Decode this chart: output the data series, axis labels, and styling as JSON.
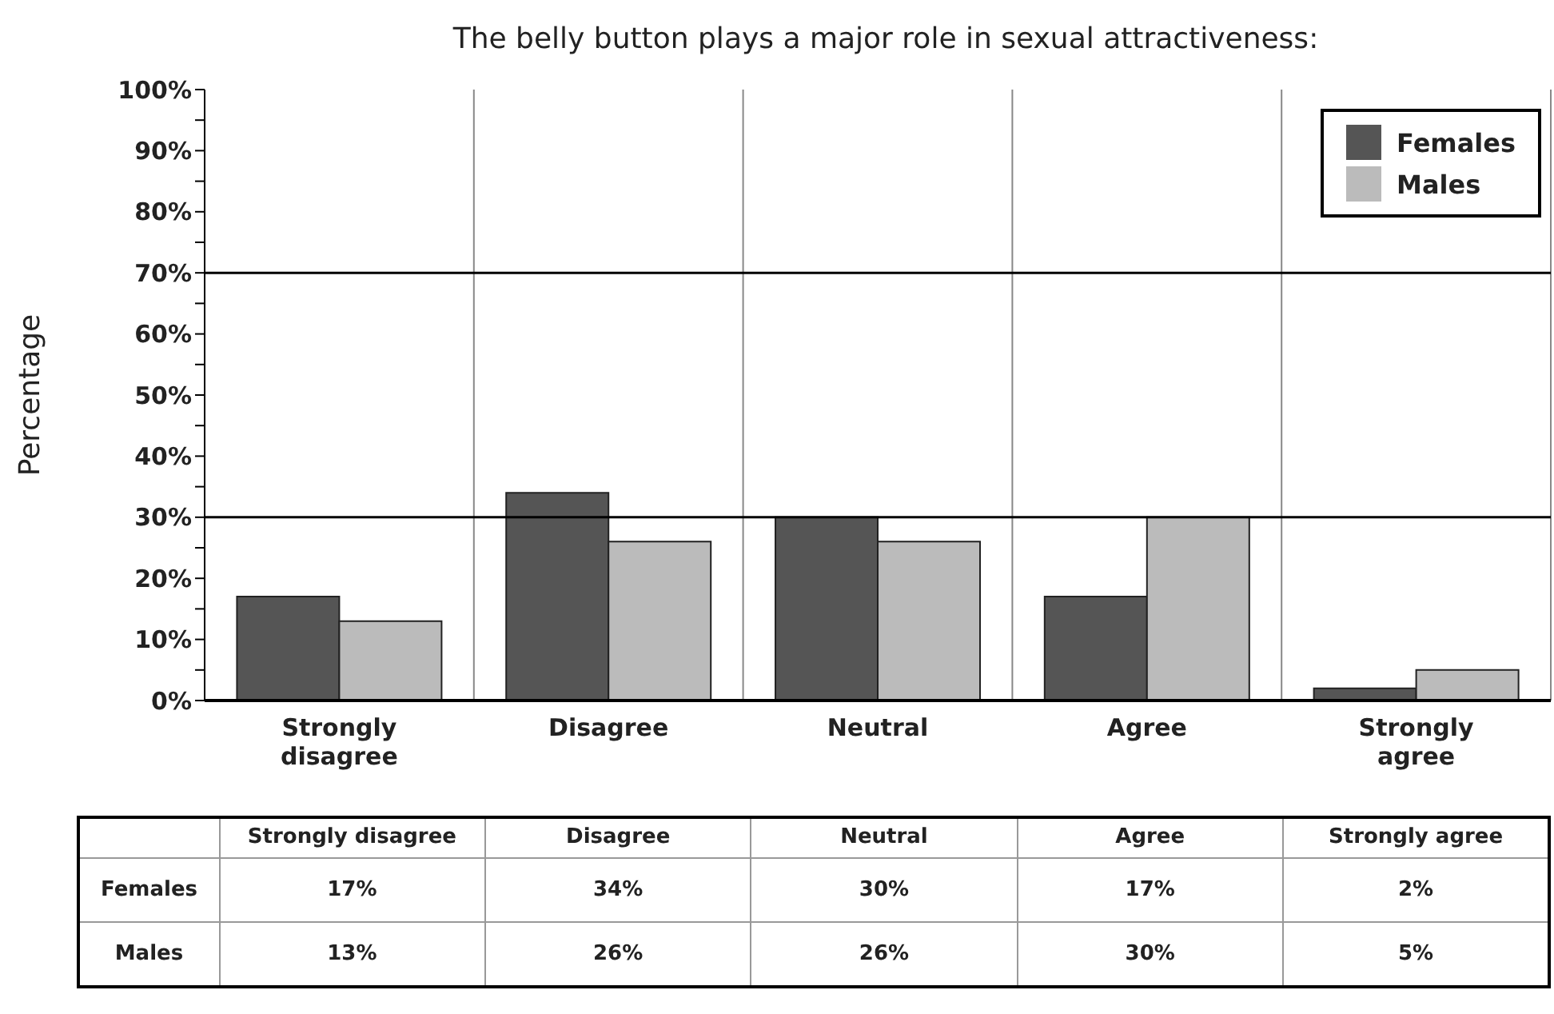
{
  "chart_data": {
    "type": "bar",
    "title": "The belly button plays a major role in sexual attractiveness:",
    "ylabel": "Percentage",
    "categories": [
      "Strongly disagree",
      "Disagree",
      "Neutral",
      "Agree",
      "Strongly agree"
    ],
    "series": [
      {
        "name": "Females",
        "color": "#555555",
        "values": [
          17,
          34,
          30,
          17,
          2
        ],
        "value_labels": [
          "17%",
          "34%",
          "30%",
          "17%",
          "2%"
        ]
      },
      {
        "name": "Males",
        "color": "#bbbbbb",
        "values": [
          13,
          26,
          26,
          30,
          5
        ],
        "value_labels": [
          "13%",
          "26%",
          "26%",
          "30%",
          "5%"
        ]
      }
    ],
    "ylim": [
      0,
      100
    ],
    "yticks": [
      {
        "value": 0,
        "label": "0%"
      },
      {
        "value": 5,
        "label": null
      },
      {
        "value": 10,
        "label": "10%"
      },
      {
        "value": 15,
        "label": null
      },
      {
        "value": 20,
        "label": "20%"
      },
      {
        "value": 25,
        "label": null
      },
      {
        "value": 30,
        "label": "30%"
      },
      {
        "value": 35,
        "label": null
      },
      {
        "value": 40,
        "label": "40%"
      },
      {
        "value": 45,
        "label": null
      },
      {
        "value": 50,
        "label": "50%"
      },
      {
        "value": 55,
        "label": null
      },
      {
        "value": 60,
        "label": "60%"
      },
      {
        "value": 65,
        "label": null
      },
      {
        "value": 70,
        "label": "70%"
      },
      {
        "value": 75,
        "label": null
      },
      {
        "value": 80,
        "label": "80%"
      },
      {
        "value": 85,
        "label": null
      },
      {
        "value": 90,
        "label": "90%"
      },
      {
        "value": 95,
        "label": null
      },
      {
        "value": 100,
        "label": "100%"
      }
    ],
    "grid": "x",
    "legend": "top right",
    "ref_lines": [
      {
        "axis": "y",
        "value": 30,
        "color": "#000000"
      },
      {
        "axis": "y",
        "value": 70,
        "color": "#000000"
      }
    ]
  }
}
